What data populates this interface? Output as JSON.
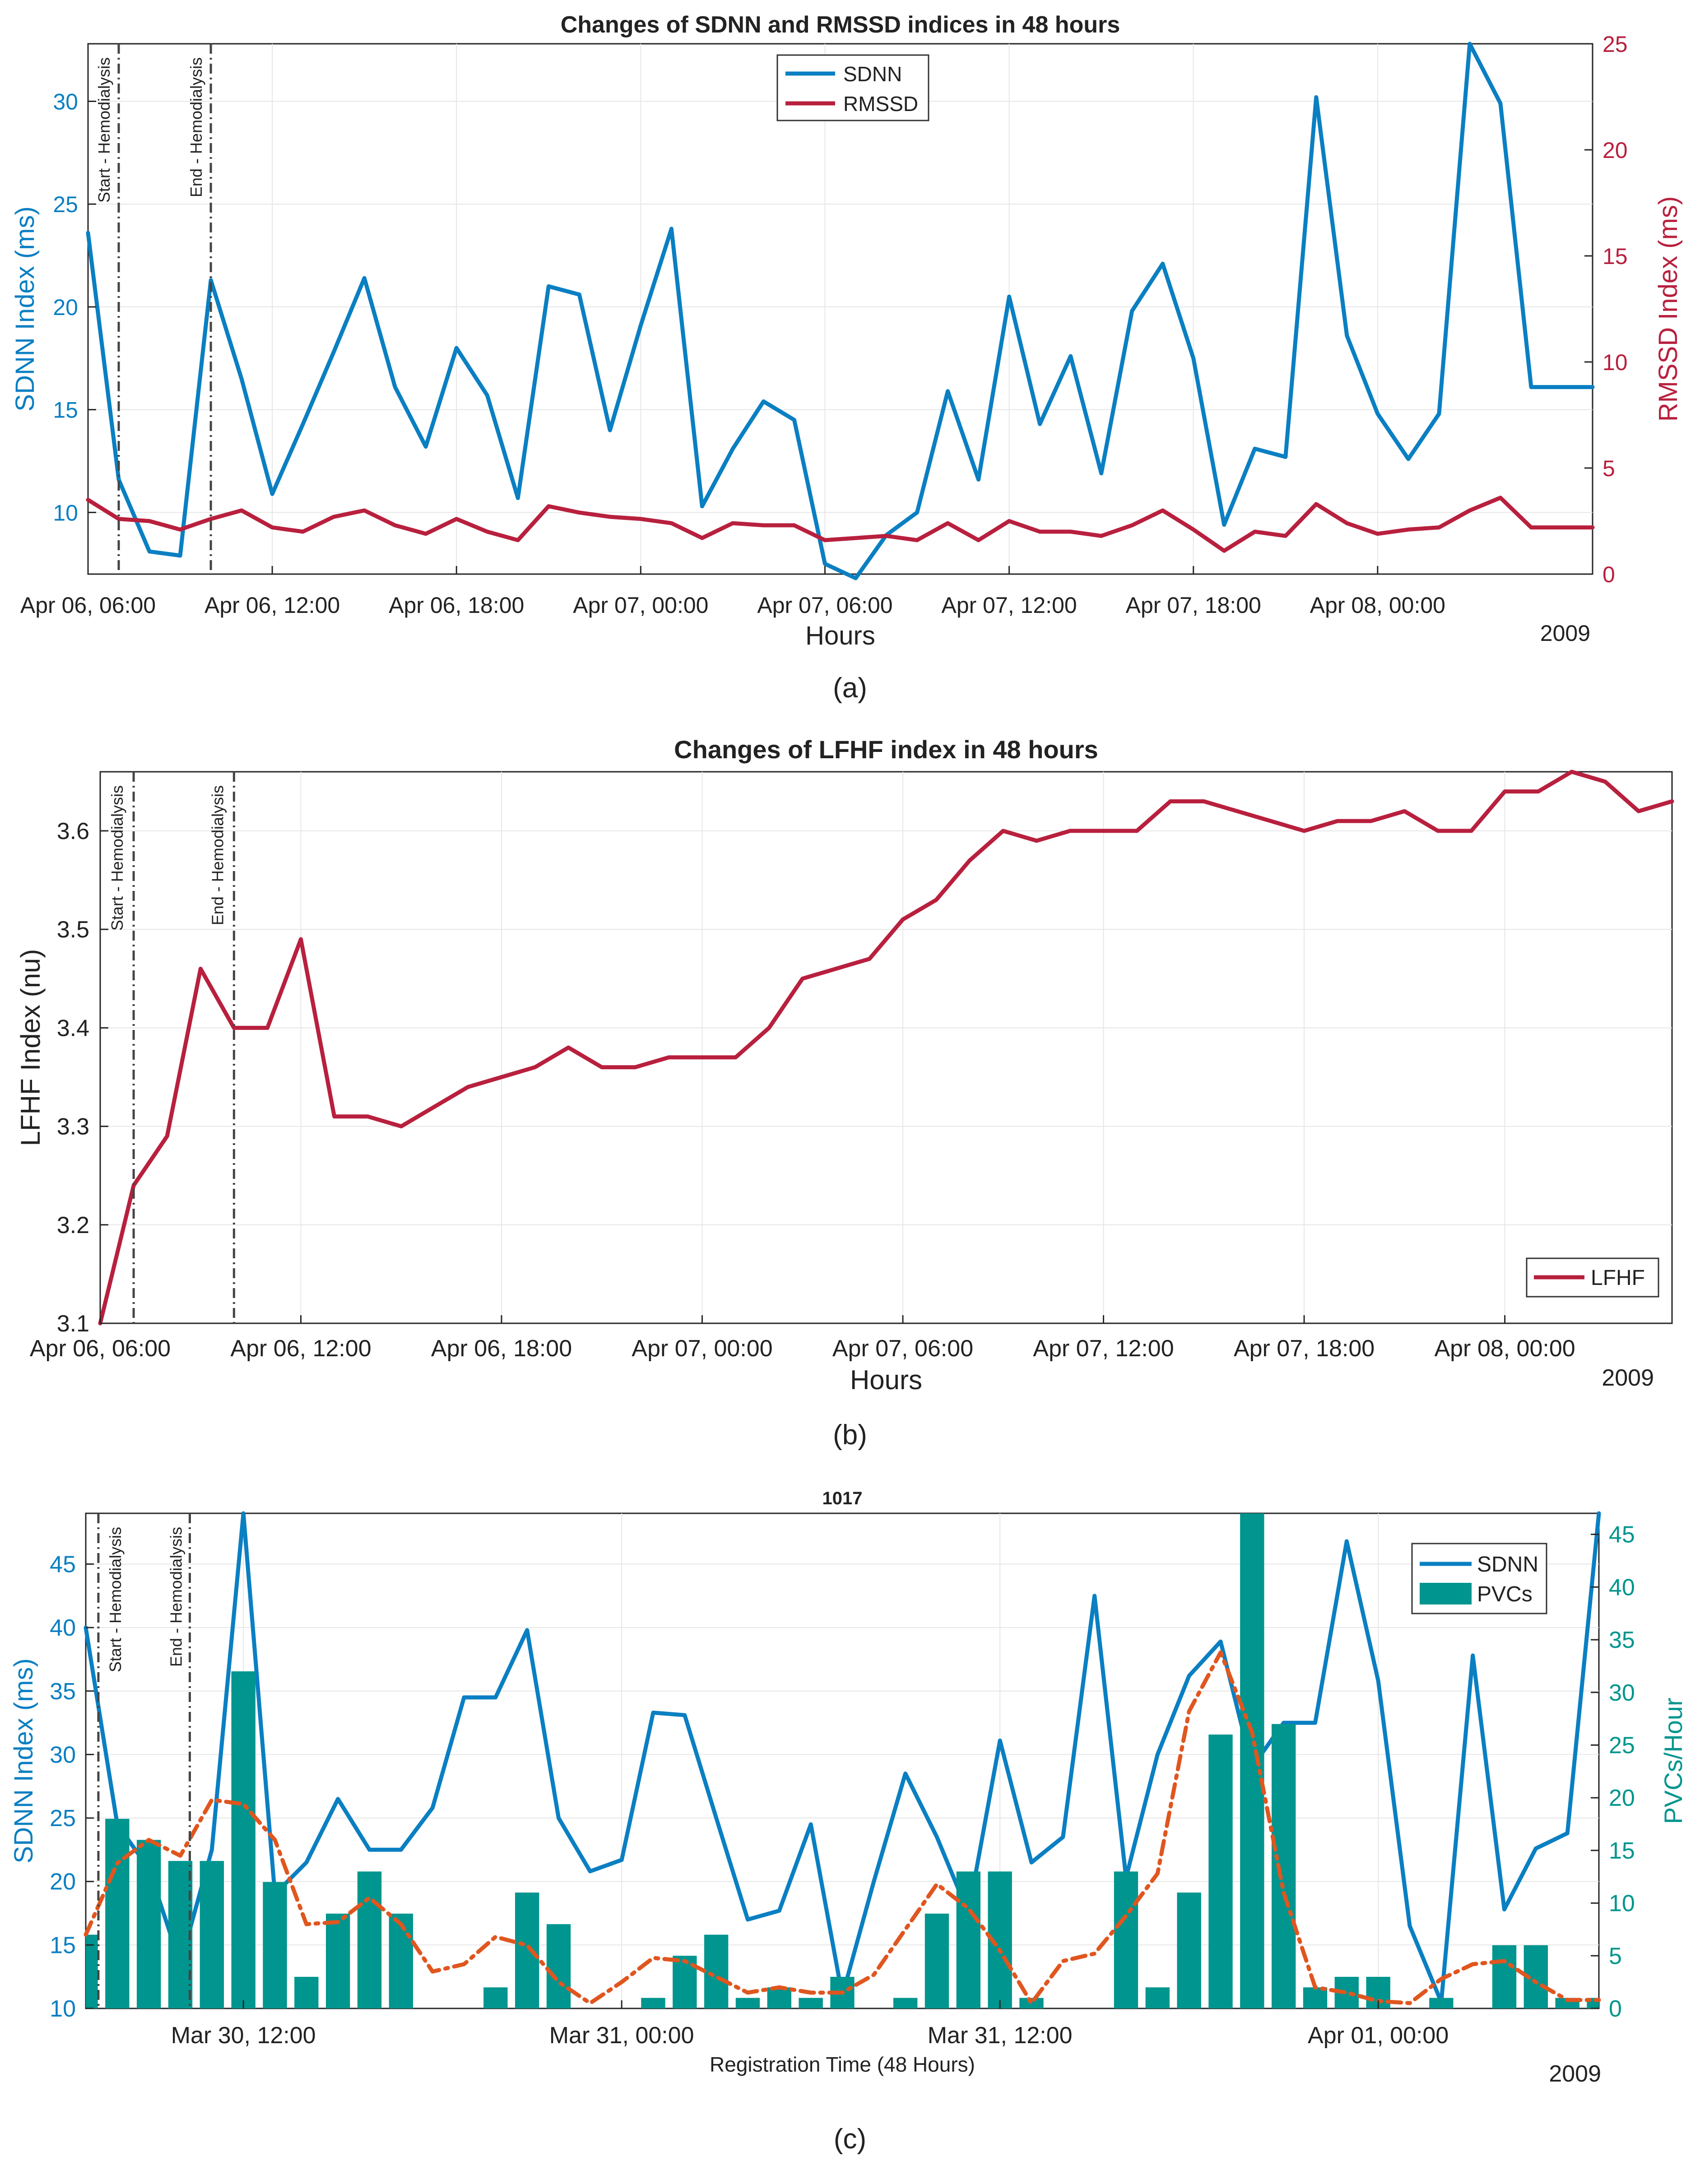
{
  "captions": [
    "(a)",
    "(b)",
    "(c)"
  ],
  "colors": {
    "sdnn_blue": "#0a7fc2",
    "rmssd_red": "#b8203e",
    "lfhf_red": "#b8203e",
    "pvc_teal": "#00958e",
    "trend_orange": "#e0561f",
    "grid": "#e6e6e6",
    "axis": "#262626",
    "marker": "#444444"
  },
  "chart_data": [
    {
      "id": "a",
      "type": "line",
      "title": "Changes of SDNN and RMSSD indices in 48 hours",
      "xlabel": "Hours",
      "ylabel_left": "SDNN Index (ms)",
      "ylabel_right": "RMSSD Index (ms)",
      "year": "2009",
      "xlim_hours": [
        6,
        55
      ],
      "ylim_left": [
        7,
        32.8
      ],
      "ylim_right": [
        0,
        25
      ],
      "yticks_left": [
        10,
        15,
        20,
        25,
        30
      ],
      "yticks_right": [
        0,
        5,
        10,
        15,
        20,
        25
      ],
      "xticks": [
        {
          "h": 6,
          "label": "Apr 06, 06:00"
        },
        {
          "h": 12,
          "label": "Apr 06, 12:00"
        },
        {
          "h": 18,
          "label": "Apr 06, 18:00"
        },
        {
          "h": 24,
          "label": "Apr 07, 00:00"
        },
        {
          "h": 30,
          "label": "Apr 07, 06:00"
        },
        {
          "h": 36,
          "label": "Apr 07, 12:00"
        },
        {
          "h": 42,
          "label": "Apr 07, 18:00"
        },
        {
          "h": 48,
          "label": "Apr 08, 00:00"
        }
      ],
      "markers": [
        {
          "h": 7,
          "label": "Start - Hemodialysis"
        },
        {
          "h": 10,
          "label": "End - Hemodialysis"
        }
      ],
      "legend": [
        "SDNN",
        "RMSSD"
      ],
      "legend_position": "top-center",
      "x": [
        6,
        7,
        8,
        9,
        10,
        11,
        12,
        13,
        14,
        15,
        16,
        17,
        18,
        19,
        20,
        21,
        22,
        23,
        24,
        25,
        26,
        27,
        28,
        29,
        30,
        31,
        32,
        33,
        34,
        35,
        36,
        37,
        38,
        39,
        40,
        41,
        42,
        43,
        44,
        45,
        46,
        47,
        48,
        49,
        50,
        51,
        52,
        53,
        54,
        55
      ],
      "series": [
        {
          "name": "SDNN",
          "axis": "left",
          "values": [
            23.6,
            11.6,
            8.1,
            7.9,
            21.3,
            16.5,
            10.9,
            14.3,
            17.8,
            21.4,
            16.1,
            13.2,
            18.0,
            15.7,
            10.7,
            21.0,
            20.6,
            14.0,
            19.1,
            23.8,
            10.3,
            13.1,
            15.4,
            14.5,
            7.5,
            6.8,
            8.9,
            10.0,
            15.9,
            11.6,
            20.5,
            14.3,
            17.6,
            11.9,
            19.8,
            22.1,
            17.5,
            9.4,
            13.1,
            12.7,
            30.2,
            18.6,
            14.8,
            12.6,
            14.8,
            32.8,
            29.9,
            16.1,
            16.1,
            16.1
          ]
        },
        {
          "name": "RMSSD",
          "axis": "right",
          "values": [
            3.5,
            2.6,
            2.5,
            2.1,
            2.6,
            3.0,
            2.2,
            2.0,
            2.7,
            3.0,
            2.3,
            1.9,
            2.6,
            2.0,
            1.6,
            3.2,
            2.9,
            2.7,
            2.6,
            2.4,
            1.7,
            2.4,
            2.3,
            2.3,
            1.6,
            1.7,
            1.8,
            1.6,
            2.4,
            1.6,
            2.5,
            2.0,
            2.0,
            1.8,
            2.3,
            3.0,
            2.1,
            1.1,
            2.0,
            1.8,
            3.3,
            2.4,
            1.9,
            2.1,
            2.2,
            3.0,
            3.6,
            2.2,
            2.2,
            2.2
          ]
        }
      ]
    },
    {
      "id": "b",
      "type": "line",
      "title": "Changes of LFHF index in 48 hours",
      "xlabel": "Hours",
      "ylabel": "LFHF Index (nu)",
      "year": "2009",
      "xlim_hours": [
        6,
        53
      ],
      "ylim": [
        3.1,
        3.66
      ],
      "yticks": [
        3.1,
        3.2,
        3.3,
        3.4,
        3.5,
        3.6
      ],
      "xticks": [
        {
          "h": 6,
          "label": "Apr 06, 06:00"
        },
        {
          "h": 12,
          "label": "Apr 06, 12:00"
        },
        {
          "h": 18,
          "label": "Apr 06, 18:00"
        },
        {
          "h": 24,
          "label": "Apr 07, 00:00"
        },
        {
          "h": 30,
          "label": "Apr 07, 06:00"
        },
        {
          "h": 36,
          "label": "Apr 07, 12:00"
        },
        {
          "h": 42,
          "label": "Apr 07, 18:00"
        },
        {
          "h": 48,
          "label": "Apr 08, 00:00"
        }
      ],
      "markers": [
        {
          "h": 7,
          "label": "Start - Hemodialysis"
        },
        {
          "h": 10,
          "label": "End - Hemodialysis"
        }
      ],
      "legend": [
        "LFHF"
      ],
      "legend_position": "bottom-right",
      "x": [
        6,
        7,
        8,
        9,
        10,
        11,
        12,
        13,
        14,
        15,
        16,
        17,
        18,
        19,
        20,
        21,
        22,
        23,
        24,
        25,
        26,
        27,
        28,
        29,
        30,
        31,
        32,
        33,
        34,
        35,
        36,
        37,
        38,
        39,
        40,
        41,
        42,
        43,
        44,
        45,
        46,
        47,
        48,
        49,
        50,
        51,
        52,
        53
      ],
      "series": [
        {
          "name": "LFHF",
          "values": [
            3.1,
            3.24,
            3.29,
            3.46,
            3.4,
            3.4,
            3.49,
            3.31,
            3.31,
            3.3,
            3.32,
            3.34,
            3.35,
            3.36,
            3.38,
            3.36,
            3.36,
            3.37,
            3.37,
            3.37,
            3.4,
            3.45,
            3.46,
            3.47,
            3.51,
            3.53,
            3.57,
            3.6,
            3.59,
            3.6,
            3.6,
            3.6,
            3.63,
            3.63,
            3.62,
            3.61,
            3.6,
            3.61,
            3.61,
            3.62,
            3.6,
            3.6,
            3.64,
            3.64,
            3.66,
            3.65,
            3.62,
            3.63
          ]
        }
      ]
    },
    {
      "id": "c",
      "type": "bar+line",
      "title": "1017",
      "xlabel": "Registration Time (48 Hours)",
      "ylabel_left": "SDNN Index (ms)",
      "ylabel_right": "PVCs/Hour",
      "year": "2009",
      "xlim_hours": [
        0,
        48
      ],
      "ylim_left": [
        10,
        49
      ],
      "ylim_right": [
        0,
        47
      ],
      "yticks_left": [
        10,
        15,
        20,
        25,
        30,
        35,
        40,
        45
      ],
      "yticks_right": [
        0,
        5,
        10,
        15,
        20,
        25,
        30,
        35,
        40,
        45
      ],
      "xticks": [
        {
          "h": 5,
          "label": "Mar 30, 12:00"
        },
        {
          "h": 17,
          "label": "Mar 31, 00:00"
        },
        {
          "h": 29,
          "label": "Mar 31, 12:00"
        },
        {
          "h": 41,
          "label": "Apr 01, 00:00"
        }
      ],
      "markers": [
        {
          "h": 0.4,
          "label": "Start - Hemodialysis"
        },
        {
          "h": 3.3,
          "label": "End - Hemodialysis"
        }
      ],
      "legend": [
        "SDNN",
        "PVCs"
      ],
      "legend_position": "top-right",
      "x": [
        0,
        1,
        2,
        3,
        4,
        5,
        6,
        7,
        8,
        9,
        10,
        11,
        12,
        13,
        14,
        15,
        16,
        17,
        18,
        19,
        20,
        21,
        22,
        23,
        24,
        25,
        26,
        27,
        28,
        29,
        30,
        31,
        32,
        33,
        34,
        35,
        36,
        37,
        38,
        39,
        40,
        41,
        42,
        43,
        44,
        45,
        46,
        47,
        48
      ],
      "series": [
        {
          "name": "SDNN",
          "type": "line",
          "axis": "left",
          "values": [
            40.0,
            24.5,
            21.0,
            13.5,
            22.5,
            49.0,
            19.0,
            21.5,
            26.5,
            22.5,
            22.5,
            25.8,
            34.5,
            34.5,
            39.8,
            25.0,
            20.8,
            21.7,
            33.3,
            33.1,
            25.0,
            17.0,
            17.7,
            24.5,
            11.0,
            20.0,
            28.5,
            23.5,
            17.5,
            31.1,
            21.5,
            23.5,
            42.5,
            20.3,
            30.0,
            36.2,
            38.9,
            29.0,
            32.5,
            32.5,
            46.8,
            35.8,
            16.5,
            10.5,
            37.8,
            17.8,
            22.6,
            23.8,
            49.0
          ]
        },
        {
          "name": "PVCs",
          "type": "bar",
          "axis": "right",
          "values": [
            7,
            18,
            16,
            14,
            14,
            32,
            12,
            3,
            9,
            13,
            9,
            0,
            0,
            2,
            11,
            8,
            0,
            0,
            1,
            5,
            7,
            1,
            2,
            1,
            3,
            0,
            1,
            9,
            13,
            13,
            1,
            0,
            0,
            13,
            2,
            11,
            26,
            47,
            27,
            2,
            3,
            3,
            0,
            1,
            0,
            6,
            6,
            1,
            1
          ]
        },
        {
          "name": "PVC trend",
          "type": "dashed-line",
          "axis": "right",
          "values": [
            7.0,
            13.8,
            16.0,
            14.5,
            19.8,
            19.4,
            16.0,
            8.0,
            8.2,
            10.5,
            8.0,
            3.5,
            4.2,
            6.8,
            6.0,
            2.5,
            0.5,
            2.5,
            4.8,
            4.5,
            3.0,
            1.5,
            2.0,
            1.5,
            1.5,
            3.2,
            7.5,
            11.8,
            9.5,
            5.5,
            0.5,
            4.5,
            5.2,
            8.8,
            12.8,
            28.2,
            33.8,
            26.2,
            11.0,
            2.0,
            1.5,
            0.7,
            0.5,
            2.8,
            4.2,
            4.5,
            2.5,
            0.8,
            0.8
          ]
        }
      ]
    }
  ]
}
